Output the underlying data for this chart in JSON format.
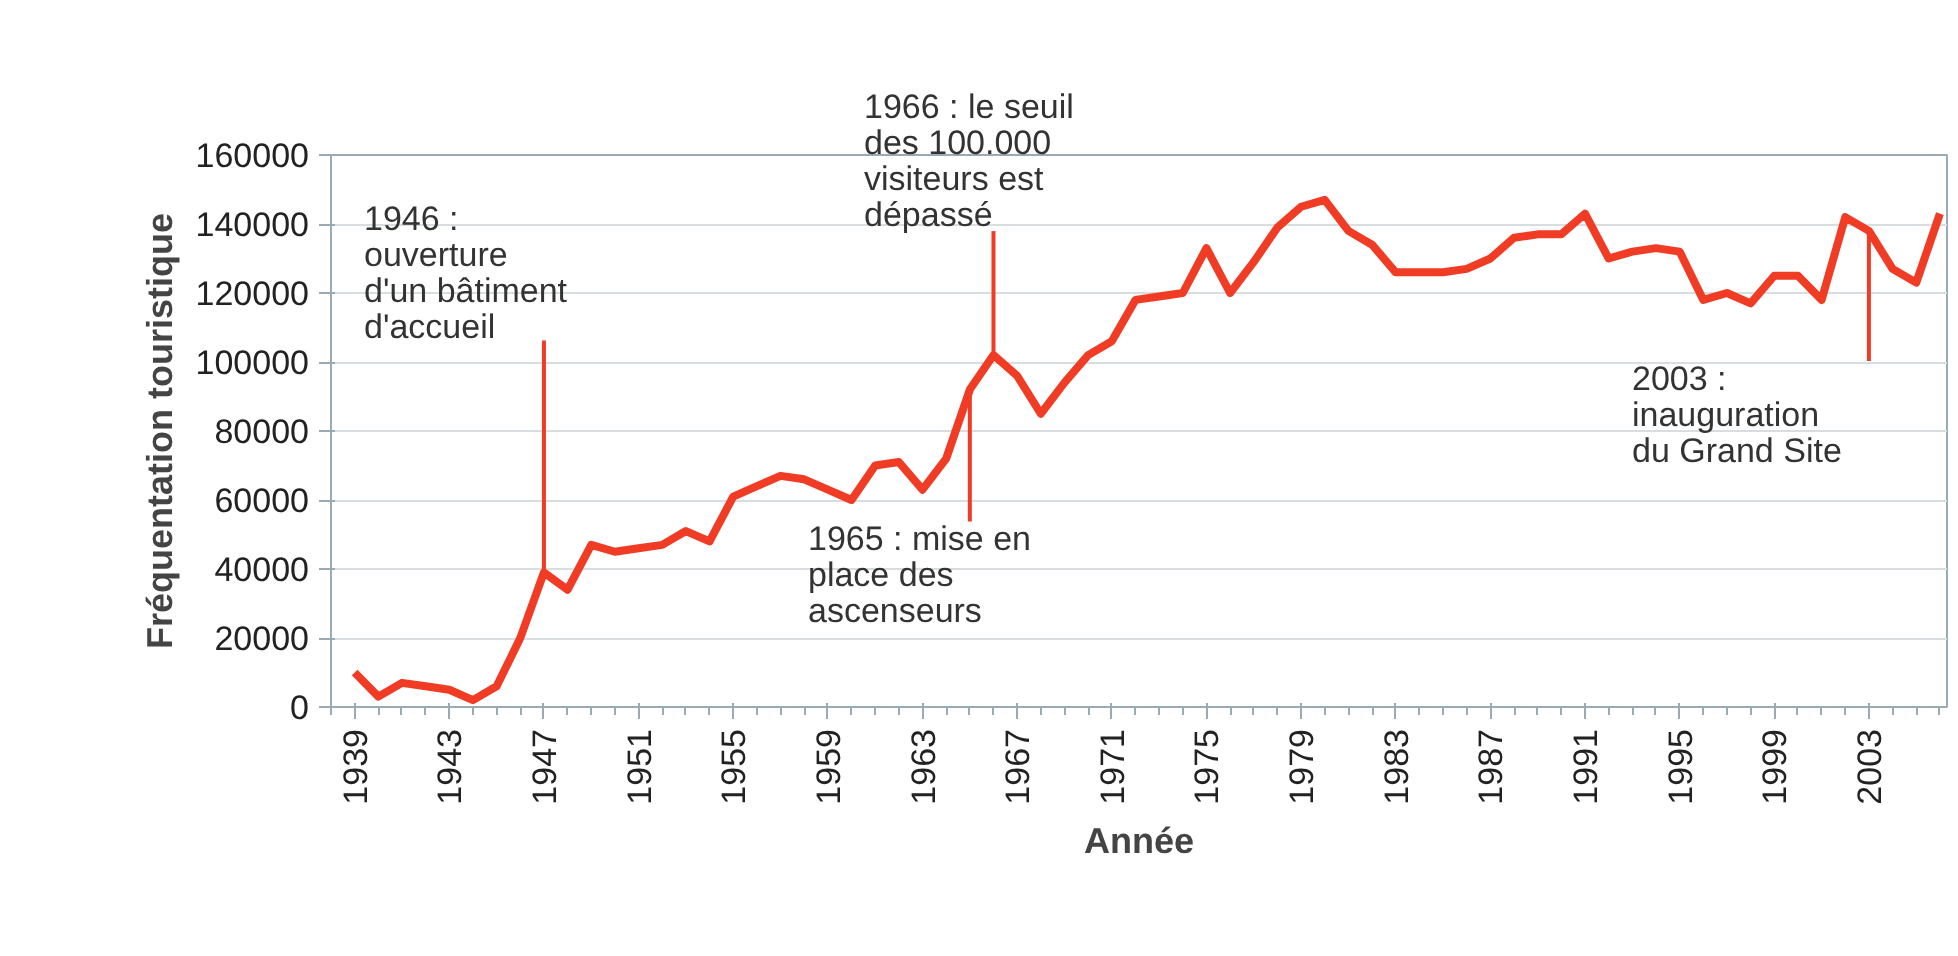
{
  "chart_data": {
    "type": "line",
    "xlabel": "Année",
    "ylabel": "Fréquentation touristique",
    "x": [
      1939,
      1940,
      1941,
      1942,
      1943,
      1944,
      1945,
      1946,
      1947,
      1948,
      1949,
      1950,
      1951,
      1952,
      1953,
      1954,
      1955,
      1956,
      1957,
      1958,
      1959,
      1960,
      1961,
      1962,
      1963,
      1964,
      1965,
      1966,
      1967,
      1968,
      1969,
      1970,
      1971,
      1972,
      1973,
      1974,
      1975,
      1976,
      1977,
      1978,
      1979,
      1980,
      1981,
      1982,
      1983,
      1984,
      1985,
      1986,
      1987,
      1988,
      1989,
      1990,
      1991,
      1992,
      1993,
      1994,
      1995,
      1996,
      1997,
      1998,
      1999,
      2000,
      2001,
      2002,
      2003,
      2004,
      2005,
      2006
    ],
    "series": [
      {
        "color": "#f03c24",
        "values": [
          10000,
          3000,
          7000,
          6000,
          5000,
          2000,
          6000,
          20000,
          39000,
          34000,
          47000,
          45000,
          46000,
          47000,
          51000,
          48000,
          61000,
          64000,
          67000,
          66000,
          63000,
          60000,
          70000,
          71000,
          63000,
          72000,
          92000,
          102000,
          96000,
          85000,
          94000,
          102000,
          106000,
          118000,
          119000,
          120000,
          133000,
          120000,
          129000,
          139000,
          145000,
          147000,
          138000,
          134000,
          126000,
          126000,
          126000,
          127000,
          130000,
          136000,
          137000,
          137000,
          143000,
          130000,
          132000,
          133000,
          132000,
          118000,
          120000,
          117000,
          125000,
          125000,
          118000,
          142000,
          138000,
          127000,
          123000,
          143000
        ]
      }
    ],
    "xlim": [
      1938,
      2006.3
    ],
    "ylim": [
      0,
      160000
    ],
    "xticks": [
      1939,
      1943,
      1947,
      1951,
      1955,
      1959,
      1963,
      1967,
      1971,
      1975,
      1979,
      1983,
      1987,
      1991,
      1995,
      1999,
      2003
    ],
    "yticks": [
      0,
      20000,
      40000,
      60000,
      80000,
      100000,
      120000,
      140000,
      160000
    ],
    "grid": "y",
    "marker": "none",
    "line_style": "solid",
    "annotations": [
      {
        "text": "1946 :\nouverture\nd'un bâtiment\nd'accueil",
        "x": 1947,
        "y": 39000
      },
      {
        "text": "1966 : le seuil\ndes 100.000\nvisiteurs est\ndépassé",
        "x": 1966,
        "y": 102000
      },
      {
        "text": "1965 : mise en\nplace des\nascenseurs",
        "x": 1965,
        "y": 92000
      },
      {
        "text": "2003 :\ninauguration\ndu Grand Site",
        "x": 2003,
        "y": 138000
      }
    ]
  }
}
